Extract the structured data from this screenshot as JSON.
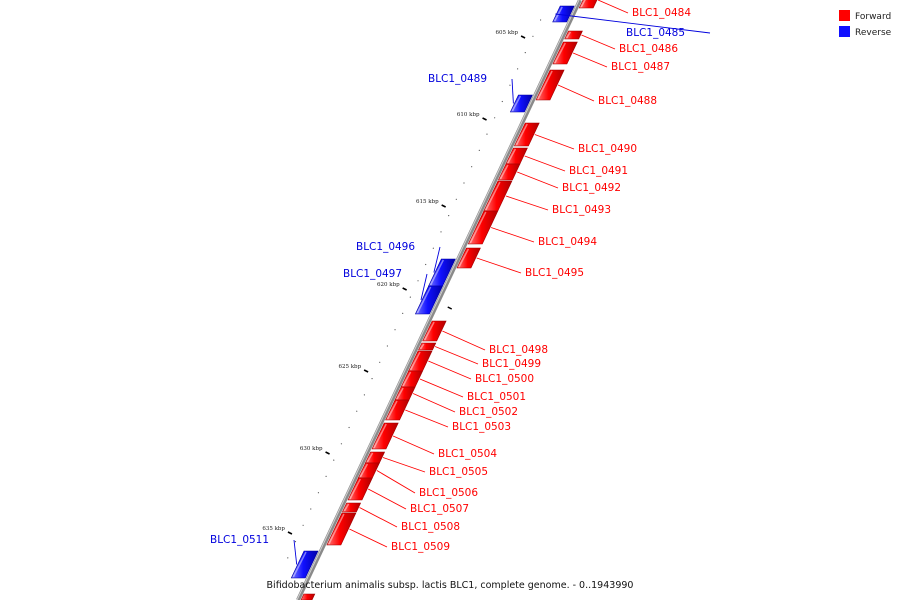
{
  "caption": "Bifidobacterium animalis subsp. lactis BLC1, complete genome. - 0..1943990",
  "legend": [
    {
      "label": "Forward",
      "color": "#ff0000"
    },
    {
      "label": "Reverse",
      "color": "#1010ff"
    }
  ],
  "colors": {
    "forward": "#ff0000",
    "reverse": "#1010ff",
    "backbone": "#888888"
  },
  "ticks": [
    "605 kbp",
    "610 kbp",
    "615 kbp",
    "620 kbp",
    "625 kbp",
    "630 kbp",
    "635 kbp"
  ],
  "genes": [
    {
      "label": "BLC1_0484",
      "strand": "forward"
    },
    {
      "label": "BLC1_0485",
      "strand": "reverse"
    },
    {
      "label": "BLC1_0486",
      "strand": "forward"
    },
    {
      "label": "BLC1_0487",
      "strand": "forward"
    },
    {
      "label": "BLC1_0488",
      "strand": "forward"
    },
    {
      "label": "BLC1_0489",
      "strand": "reverse"
    },
    {
      "label": "BLC1_0490",
      "strand": "forward"
    },
    {
      "label": "BLC1_0491",
      "strand": "forward"
    },
    {
      "label": "BLC1_0492",
      "strand": "forward"
    },
    {
      "label": "BLC1_0493",
      "strand": "forward"
    },
    {
      "label": "BLC1_0494",
      "strand": "forward"
    },
    {
      "label": "BLC1_0495",
      "strand": "forward"
    },
    {
      "label": "BLC1_0496",
      "strand": "reverse"
    },
    {
      "label": "BLC1_0497",
      "strand": "reverse"
    },
    {
      "label": "BLC1_0498",
      "strand": "forward"
    },
    {
      "label": "BLC1_0499",
      "strand": "forward"
    },
    {
      "label": "BLC1_0500",
      "strand": "forward"
    },
    {
      "label": "BLC1_0501",
      "strand": "forward"
    },
    {
      "label": "BLC1_0502",
      "strand": "forward"
    },
    {
      "label": "BLC1_0503",
      "strand": "forward"
    },
    {
      "label": "BLC1_0504",
      "strand": "forward"
    },
    {
      "label": "BLC1_0505",
      "strand": "forward"
    },
    {
      "label": "BLC1_0506",
      "strand": "forward"
    },
    {
      "label": "BLC1_0507",
      "strand": "forward"
    },
    {
      "label": "BLC1_0508",
      "strand": "forward"
    },
    {
      "label": "BLC1_0509",
      "strand": "forward"
    },
    {
      "label": "BLC1_0511",
      "strand": "reverse"
    }
  ]
}
